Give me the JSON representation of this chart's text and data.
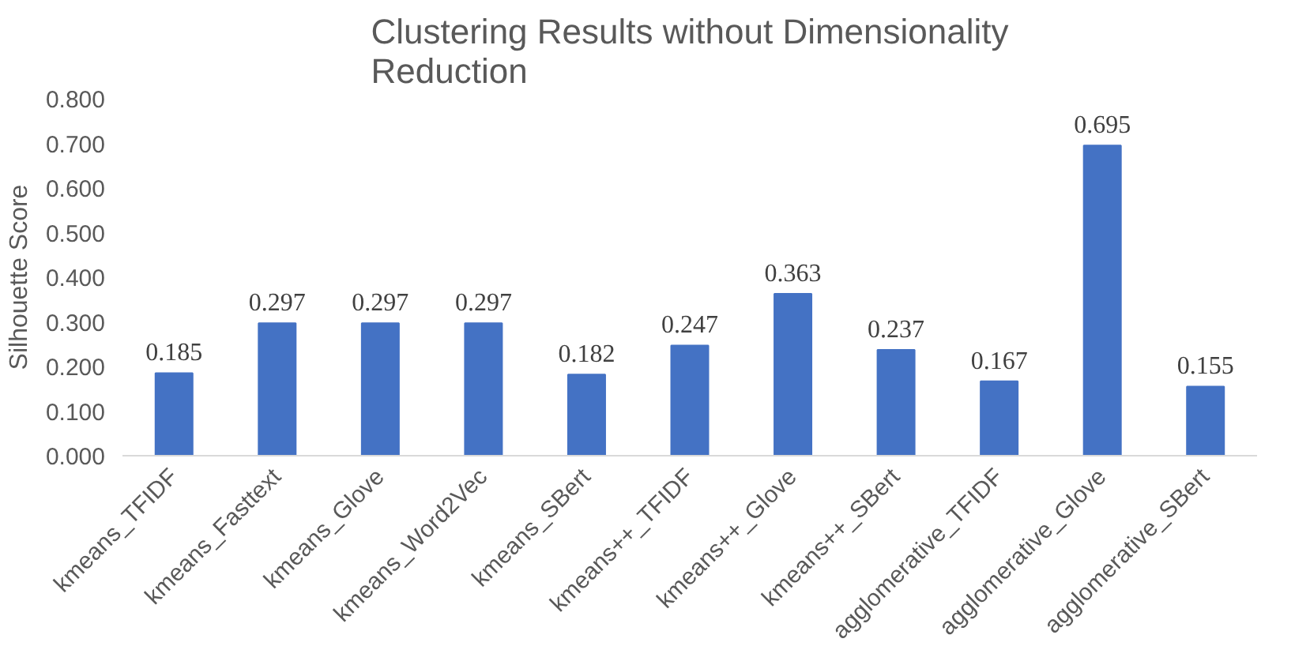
{
  "chart_data": {
    "type": "bar",
    "title": "Clustering Results without Dimensionality Reduction",
    "ylabel": "Silhouette Score",
    "categories": [
      "kmeans_TFIDF",
      "kmeans_Fasttext",
      "kmeans_Glove",
      "kmeans_Word2Vec",
      "kmeans_SBert",
      "kmeans++_TFIDF",
      "kmeans++_Glove",
      "kmeans++_SBert",
      "agglomerative_TFIDF",
      "agglomerative_Glove",
      "agglomerative_SBert"
    ],
    "values": [
      0.185,
      0.297,
      0.297,
      0.297,
      0.182,
      0.247,
      0.363,
      0.237,
      0.167,
      0.695,
      0.155
    ],
    "color": "#4472c4",
    "data_labels": true,
    "grid": false,
    "ylim": [
      0,
      0.8
    ],
    "yticks": [
      {
        "value": 0,
        "label": "0.000"
      },
      {
        "value": 0.1,
        "label": "0.100"
      },
      {
        "value": 0.2,
        "label": "0.200"
      },
      {
        "value": 0.3,
        "label": "0.300"
      },
      {
        "value": 0.4,
        "label": "0.400"
      },
      {
        "value": 0.5,
        "label": "0.500"
      },
      {
        "value": 0.6,
        "label": "0.600"
      },
      {
        "value": 0.7,
        "label": "0.700"
      },
      {
        "value": 0.8,
        "label": "0.800"
      }
    ]
  }
}
